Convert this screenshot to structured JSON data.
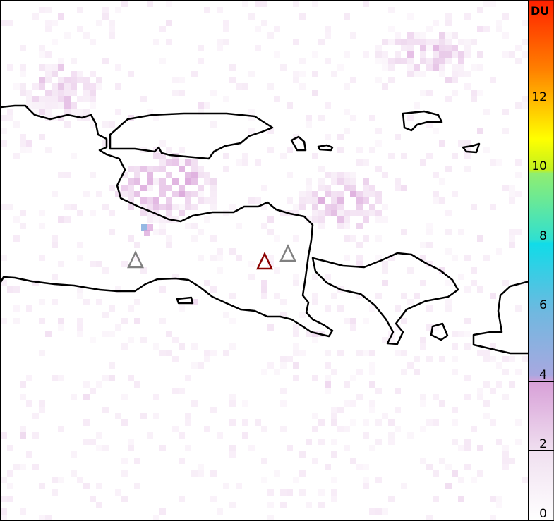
{
  "map": {
    "volcano_markers": [
      {
        "color": "#808080",
        "status": "inactive"
      },
      {
        "color": "#8b0000",
        "status": "active"
      },
      {
        "color": "#808080",
        "status": "inactive"
      }
    ],
    "coastline_color": "#000000"
  },
  "colorbar": {
    "unit": "DU",
    "range": [
      0,
      15
    ],
    "ticks": [
      "0",
      "2",
      "4",
      "6",
      "8",
      "10",
      "12"
    ],
    "tick_values": [
      0,
      2,
      4,
      6,
      8,
      10,
      12
    ],
    "colors": [
      {
        "value": 0,
        "color": "#ffffff"
      },
      {
        "value": 2,
        "color": "#f0e0f0"
      },
      {
        "value": 4,
        "color": "#d8a0d8"
      },
      {
        "value": 4.2,
        "color": "#a8a8e0"
      },
      {
        "value": 6,
        "color": "#70b8e0"
      },
      {
        "value": 8,
        "color": "#10dce8"
      },
      {
        "value": 8.1,
        "color": "#30e0d0"
      },
      {
        "value": 10,
        "color": "#90ee70"
      },
      {
        "value": 10.1,
        "color": "#c0f020"
      },
      {
        "value": 11,
        "color": "#ffff00"
      },
      {
        "value": 12,
        "color": "#ffc000"
      },
      {
        "value": 13,
        "color": "#ff8000"
      },
      {
        "value": 15,
        "color": "#ff2000"
      }
    ]
  }
}
